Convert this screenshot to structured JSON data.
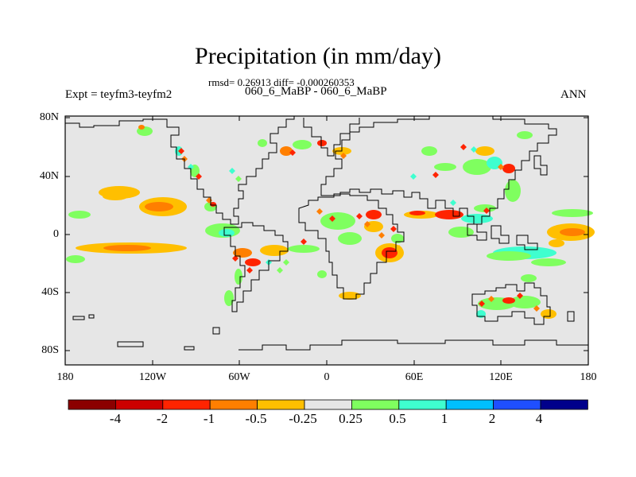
{
  "title": "Precipitation (in mm/day)",
  "stats": "rmsd= 0.26913 diff= -0.000260353",
  "cases": "060_6_MaBP - 060_6_MaBP",
  "experiment": "Expt = teyfm3-teyfm2",
  "season": "ANN",
  "map": {
    "background_color": "#e6e6e6",
    "lat_ticks": [
      "80N",
      "40N",
      "0",
      "40S",
      "80S"
    ],
    "lon_ticks": [
      "180",
      "120W",
      "60W",
      "0",
      "60E",
      "120E",
      "180"
    ]
  },
  "colorbar": {
    "colors": [
      "#8b0000",
      "#cc0000",
      "#ff2400",
      "#ff7f00",
      "#ffbf00",
      "#e6e6e6",
      "#7fff5f",
      "#3fffcf",
      "#00bfff",
      "#1f4fff",
      "#00008b"
    ],
    "labels": [
      "-4",
      "-2",
      "-1",
      "-0.5",
      "-0.25",
      "0.25",
      "0.5",
      "1",
      "2",
      "4"
    ]
  }
}
